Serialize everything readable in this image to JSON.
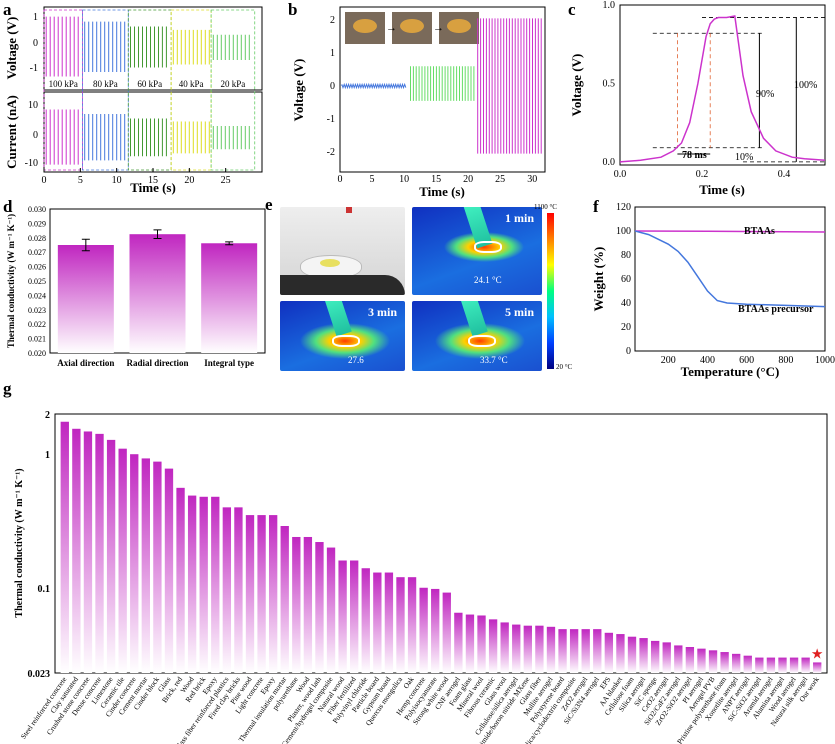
{
  "panels": {
    "a": {
      "label": "a",
      "top_ylabel": "Voltage (V)",
      "bottom_ylabel": "Current (nA)",
      "xlabel": "Time (s)",
      "xticks": [
        "0",
        "5",
        "10",
        "15",
        "20",
        "25"
      ],
      "top_yticks": [
        "1",
        "0",
        "-1"
      ],
      "bottom_yticks": [
        "10",
        "0",
        "-10"
      ],
      "pressures": [
        "100 kPa",
        "80 kPa",
        "60 kPa",
        "40 kPa",
        "20 kPa"
      ],
      "colors": [
        "#cc33cc",
        "#4477dd",
        "#449933",
        "#dddd22",
        "#66cc66"
      ]
    },
    "b": {
      "label": "b",
      "ylabel": "Voltage (V)",
      "xlabel": "Time (s)",
      "xticks": [
        "0",
        "5",
        "10",
        "15",
        "20",
        "25",
        "30"
      ],
      "yticks": [
        "2",
        "1",
        "0",
        "-1",
        "-2"
      ]
    },
    "c": {
      "label": "c",
      "ylabel": "Voltage (V)",
      "xlabel": "Time (s)",
      "xticks": [
        "0.0",
        "0.2",
        "0.4"
      ],
      "yticks": [
        "1.0",
        "0.5",
        "0.0"
      ],
      "annot_90": "90%",
      "annot_100": "100%",
      "annot_10": "10%",
      "annot_ms": "78 ms"
    },
    "d": {
      "label": "d",
      "ylabel": "Thermal conductivity (W m⁻¹ K⁻¹)",
      "yticks": [
        "0.030",
        "0.029",
        "0.028",
        "0.027",
        "0.026",
        "0.025",
        "0.024",
        "0.023",
        "0.022",
        "0.021",
        "0.020"
      ]
    },
    "e": {
      "label": "e",
      "t1": "1 min",
      "t3": "3 min",
      "t5": "5 min",
      "temp1": "24.1 °C",
      "temp3": "27.6",
      "temp5": "33.7 °C",
      "scale_max": "1100 °C",
      "scale_min": "20 °C"
    },
    "f": {
      "label": "f",
      "ylabel": "Weight (%)",
      "xlabel": "Temperature (°C)",
      "xticks": [
        "200",
        "400",
        "600",
        "800",
        "1000"
      ],
      "yticks": [
        "120",
        "100",
        "80",
        "60",
        "40",
        "20",
        "0"
      ],
      "series_labels": [
        "BTAAs",
        "BTAAs precursor"
      ]
    },
    "g": {
      "label": "g",
      "ylabel": "Thermal conductivity (W m⁻¹ K⁻¹)",
      "yticks": [
        "2",
        "1",
        "0.1",
        "0.023"
      ]
    }
  },
  "chart_data": [
    {
      "id": "d",
      "type": "bar",
      "categories": [
        "Axial direction",
        "Radial direction",
        "Integral type"
      ],
      "values": [
        0.0275,
        0.02825,
        0.02762
      ],
      "errors": [
        0.0004,
        0.0003,
        0.0001
      ],
      "ylabel": "Thermal conductivity (W m⁻¹ K⁻¹)",
      "ylim": [
        0.02,
        0.03
      ]
    },
    {
      "id": "f",
      "type": "line",
      "title": "",
      "xlabel": "Temperature (°C)",
      "ylabel": "Weight (%)",
      "xlim": [
        30,
        1000
      ],
      "ylim": [
        0,
        120
      ],
      "series": [
        {
          "name": "BTAAs",
          "color": "#cc33cc",
          "x": [
            30,
            200,
            400,
            600,
            800,
            1000
          ],
          "y": [
            100,
            99.9,
            99.8,
            99.6,
            99.4,
            99.2
          ]
        },
        {
          "name": "BTAAs precursor",
          "color": "#4477dd",
          "x": [
            30,
            100,
            200,
            250,
            300,
            350,
            400,
            450,
            500,
            600,
            800,
            1000
          ],
          "y": [
            100,
            97,
            89,
            83,
            74,
            62,
            50,
            42,
            40,
            39,
            38,
            37
          ]
        }
      ]
    },
    {
      "id": "c",
      "type": "line",
      "xlabel": "Time (s)",
      "ylabel": "Voltage (V)",
      "xlim": [
        0,
        0.5
      ],
      "ylim": [
        -0.02,
        1.0
      ],
      "series": [
        {
          "name": "response",
          "color": "#cc33cc",
          "x": [
            0,
            0.05,
            0.1,
            0.13,
            0.15,
            0.17,
            0.19,
            0.21,
            0.22,
            0.23,
            0.24,
            0.26,
            0.28,
            0.3,
            0.32,
            0.35,
            0.38,
            0.42,
            0.45,
            0.5
          ],
          "y": [
            0.0,
            0.01,
            0.03,
            0.07,
            0.12,
            0.25,
            0.5,
            0.8,
            0.88,
            0.91,
            0.92,
            0.92,
            0.93,
            0.55,
            0.32,
            0.15,
            0.07,
            0.03,
            0.02,
            0.01
          ]
        }
      ],
      "annotations": [
        "90%",
        "100%",
        "10%",
        "78 ms"
      ]
    },
    {
      "id": "g",
      "type": "bar",
      "yscale": "log",
      "ylim": [
        0.023,
        2
      ],
      "ylabel": "Thermal conductivity (W m⁻¹ K⁻¹)",
      "categories": [
        "Steel reinforced concrete",
        "Clay saturated",
        "Crushed stone concrete",
        "Dense concrete",
        "Limestone",
        "Ceramic tile",
        "Cinder concrete",
        "Cement mortar",
        "Cinder block",
        "Glass",
        "Brick, red",
        "Wood",
        "Red brick",
        "Epoxy",
        "Glass fiber reinforced plastics",
        "Fired clay bricks",
        "Pine wood",
        "Light concrete",
        "Epoxy",
        "Thermal insulation mortar",
        "polyurethane",
        "Wood",
        "Plaster, wood lath",
        "Cement/hydrogel composite",
        "Natural wood",
        "Fiber fertilized",
        "Polyvinyl chloride",
        "Particle board",
        "Gypsum board",
        "Quercus mongolica",
        "Oak",
        "Hemp concrete",
        "Polyisocyanurate",
        "Strong white wood",
        "CNF aerogel",
        "Foam glass",
        "Mineral wool",
        "Fibrous ceramic",
        "Glass wool",
        "Cellulose/silica aerogel",
        "Polyimide/boron nitride MXene",
        "Glass fiber",
        "Mullite aerogel",
        "Polystyrene board",
        "Silica/cyclodextrin composite",
        "ZrO2 aerogel",
        "SiC/Si3N4 aerogel",
        "EPS",
        "AA blanket",
        "Cellulose foam",
        "Silica aerogel",
        "SiC sponge",
        "CeO2 aerogel",
        "SiO2/CaF2 aerogel",
        "ZrO2-SiO2 aerogel",
        "PI aerogel",
        "Aerogel PVB",
        "Pristine polyurethane foam",
        "Xonotlite aerogel",
        "ANPT aerogel",
        "SiC-SiO2 aerogel",
        "Aramid aerogel",
        "Alumina aerogel",
        "Wood aerogel",
        "Natural silk aerogel",
        "Our work"
      ],
      "values": [
        1.75,
        1.55,
        1.48,
        1.42,
        1.28,
        1.1,
        1.0,
        0.93,
        0.88,
        0.78,
        0.56,
        0.49,
        0.48,
        0.48,
        0.4,
        0.4,
        0.35,
        0.35,
        0.35,
        0.29,
        0.24,
        0.24,
        0.22,
        0.2,
        0.16,
        0.16,
        0.14,
        0.13,
        0.13,
        0.12,
        0.12,
        0.1,
        0.098,
        0.092,
        0.065,
        0.063,
        0.062,
        0.058,
        0.055,
        0.053,
        0.052,
        0.052,
        0.051,
        0.049,
        0.049,
        0.049,
        0.049,
        0.046,
        0.045,
        0.043,
        0.042,
        0.04,
        0.039,
        0.037,
        0.036,
        0.035,
        0.034,
        0.033,
        0.032,
        0.031,
        0.03,
        0.03,
        0.03,
        0.03,
        0.03,
        0.0276
      ],
      "highlight": "Our work"
    }
  ]
}
